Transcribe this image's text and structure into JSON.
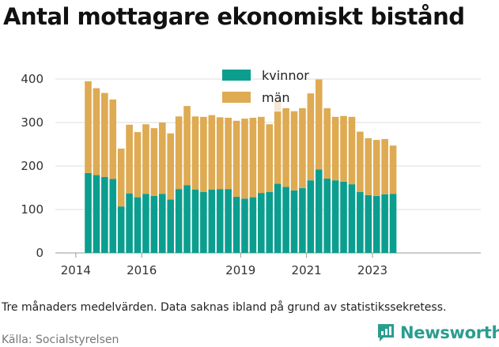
{
  "title": "Antal mottagare ekonomiskt bistånd",
  "note": "Tre månaders medelvärden. Data saknas ibland på grund av statistikssekretess.",
  "source": "Källa: Socialstyrelsen",
  "brand": "Newsworthy",
  "colors": {
    "kvinnor": "#0b9e8f",
    "man": "#deaa52",
    "missing": "#f6e9d2",
    "grid": "#dddddd"
  },
  "chart_data": {
    "type": "bar",
    "stacked": true,
    "xlabel": "",
    "ylabel": "",
    "ylim": [
      0,
      430
    ],
    "yticks": [
      0,
      100,
      200,
      300,
      400
    ],
    "xticks": [
      {
        "label": "2014",
        "index": -1.5
      },
      {
        "label": "2016",
        "index": 6.5
      },
      {
        "label": "2019",
        "index": 18.5
      },
      {
        "label": "2021",
        "index": 26.5
      },
      {
        "label": "2023",
        "index": 34.5
      }
    ],
    "legend": {
      "position": "top-center",
      "entries": [
        "kvinnor",
        "män"
      ]
    },
    "series": [
      {
        "name": "kvinnor",
        "values": [
          184,
          179,
          175,
          170,
          107,
          137,
          128,
          136,
          131,
          136,
          123,
          147,
          156,
          146,
          140,
          146,
          147,
          147,
          129,
          125,
          128,
          138,
          140,
          159,
          152,
          144,
          149,
          167,
          192,
          171,
          167,
          164,
          158,
          140,
          133,
          131,
          135,
          136
        ]
      },
      {
        "name": "män",
        "values": [
          211,
          200,
          193,
          183,
          133,
          158,
          150,
          160,
          156,
          164,
          152,
          167,
          182,
          168,
          173,
          171,
          165,
          164,
          175,
          184,
          183,
          175,
          156,
          166,
          181,
          182,
          184,
          200,
          207,
          162,
          146,
          151,
          155,
          139,
          131,
          129,
          127,
          111
        ]
      }
    ],
    "missing": [
      null,
      null,
      null,
      null,
      null,
      null,
      null,
      null,
      null,
      null,
      null,
      null,
      null,
      null,
      null,
      null,
      null,
      null,
      null,
      null,
      null,
      null,
      null,
      348,
      null,
      null,
      null,
      null,
      null,
      null,
      null,
      null,
      null,
      null,
      null,
      null,
      null,
      null
    ]
  }
}
